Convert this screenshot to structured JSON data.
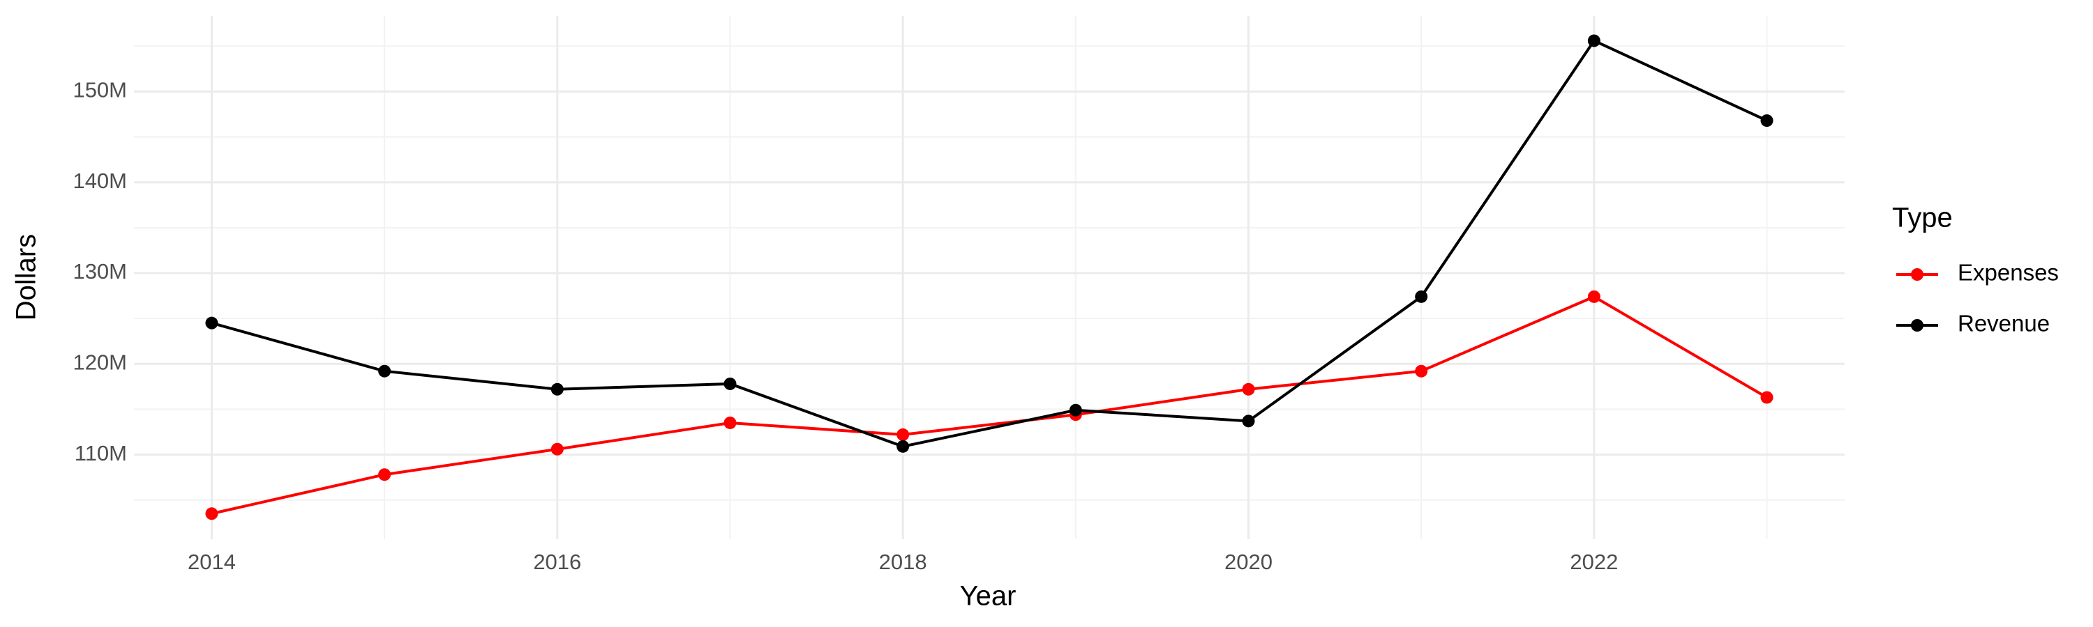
{
  "chart_data": {
    "type": "line",
    "x_label": "Year",
    "y_label": "Dollars",
    "legend_title": "Type",
    "x": [
      2014,
      2015,
      2016,
      2017,
      2018,
      2019,
      2020,
      2021,
      2022,
      2023
    ],
    "series": [
      {
        "name": "Expenses",
        "color": "#ff0000",
        "values": [
          103500000,
          107800000,
          110600000,
          113500000,
          112200000,
          114400000,
          117200000,
          119200000,
          127400000,
          116300000
        ]
      },
      {
        "name": "Revenue",
        "color": "#000000",
        "values": [
          124500000,
          119200000,
          117200000,
          117800000,
          110900000,
          114900000,
          113700000,
          127400000,
          155600000,
          146800000
        ]
      }
    ],
    "xlim": [
      2013.55,
      2023.45
    ],
    "xticks": [
      2014,
      2016,
      2018,
      2020,
      2022
    ],
    "ylim": [
      100680000,
      158320000
    ],
    "yticks": [
      {
        "value": 110000000,
        "label": "110M"
      },
      {
        "value": 120000000,
        "label": "120M"
      },
      {
        "value": 130000000,
        "label": "130M"
      },
      {
        "value": 140000000,
        "label": "140M"
      },
      {
        "value": 150000000,
        "label": "150M"
      }
    ],
    "grid": true,
    "legend_position": "right"
  }
}
